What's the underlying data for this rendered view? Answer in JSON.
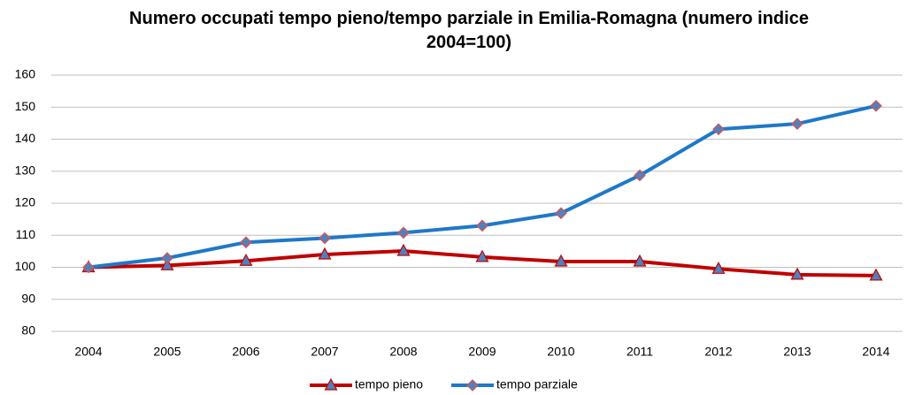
{
  "chart_data": {
    "type": "line",
    "title": "Numero occupati tempo pieno/tempo parziale in Emilia-Romagna (numero indice 2004=100)",
    "categories": [
      "2004",
      "2005",
      "2006",
      "2007",
      "2008",
      "2009",
      "2010",
      "2011",
      "2012",
      "2013",
      "2014"
    ],
    "series": [
      {
        "name": "tempo pieno",
        "color": "#c00000",
        "marker": "triangle",
        "values": [
          100,
          100.6,
          102,
          104,
          105.1,
          103.2,
          101.8,
          101.8,
          99.5,
          97.7,
          97.4
        ]
      },
      {
        "name": "tempo parziale",
        "color": "#1f78c8",
        "marker": "diamond",
        "values": [
          100,
          102.9,
          107.8,
          109.1,
          110.8,
          113,
          116.9,
          128.7,
          143.1,
          144.8,
          150.4
        ]
      }
    ],
    "ylim": [
      80,
      160
    ],
    "yticks": [
      80,
      90,
      100,
      110,
      120,
      130,
      140,
      150,
      160
    ],
    "grid": true,
    "legend": "bottom"
  }
}
